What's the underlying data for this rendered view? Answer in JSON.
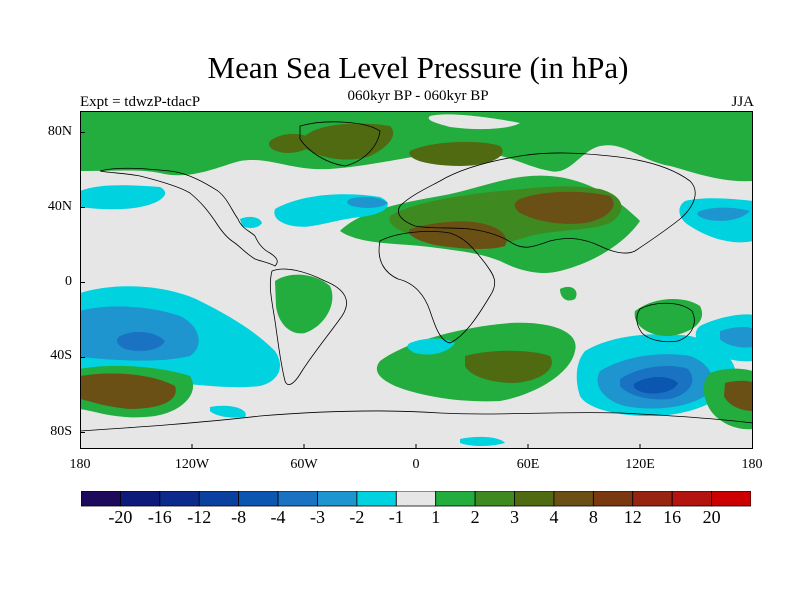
{
  "title": "Mean Sea Level Pressure (in hPa)",
  "subtitle": "060kyr BP - 060kyr BP",
  "experiment": "Expt = tdwzP-tdacP",
  "season": "JJA",
  "lat_labels": [
    "80N",
    "40N",
    "0",
    "40S",
    "80S"
  ],
  "lon_labels": [
    "180",
    "120W",
    "60W",
    "0",
    "60E",
    "120E",
    "180"
  ],
  "colorbar": {
    "colors": [
      "#1d0a5c",
      "#0e1a7a",
      "#0b2a8c",
      "#0a40a0",
      "#0a56b0",
      "#1a73c2",
      "#1f95cf",
      "#00d2e0",
      "#e6e6e6",
      "#22ad3e",
      "#3f8a20",
      "#4f6a10",
      "#6a5015",
      "#7a3810",
      "#962410",
      "#b41410",
      "#cc0000"
    ],
    "labels": [
      "-20",
      "-16",
      "-12",
      "-8",
      "-4",
      "-3",
      "-2",
      "-1",
      "1",
      "2",
      "3",
      "4",
      "8",
      "12",
      "16",
      "20"
    ]
  }
}
